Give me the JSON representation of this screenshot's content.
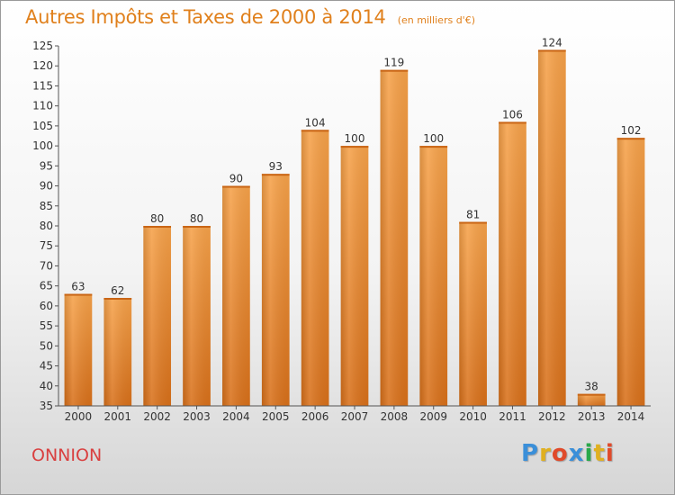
{
  "chart_data": {
    "type": "bar",
    "title": "Autres Impôts et Taxes de 2000 à 2014",
    "subtitle": "(en milliers d'€)",
    "categories": [
      "2000",
      "2001",
      "2002",
      "2003",
      "2004",
      "2005",
      "2006",
      "2007",
      "2008",
      "2009",
      "2010",
      "2011",
      "2012",
      "2013",
      "2014"
    ],
    "values": [
      63,
      62,
      80,
      80,
      90,
      93,
      104,
      100,
      119,
      100,
      81,
      106,
      124,
      38,
      102
    ],
    "ylim": [
      35,
      125
    ],
    "yticks": [
      35,
      40,
      45,
      50,
      55,
      60,
      65,
      70,
      75,
      80,
      85,
      90,
      95,
      100,
      105,
      110,
      115,
      120,
      125
    ],
    "grid": false,
    "bar_color": "#f0932f"
  },
  "footer": {
    "commune": "ONNION",
    "logo": {
      "letters": [
        "P",
        "r",
        "o",
        "x",
        "i",
        "t",
        "i"
      ],
      "colors": [
        "#3a8fd9",
        "#e0b020",
        "#e04a2a",
        "#3a8fd9",
        "#2aa84a",
        "#e0b020",
        "#e04a2a"
      ]
    }
  }
}
